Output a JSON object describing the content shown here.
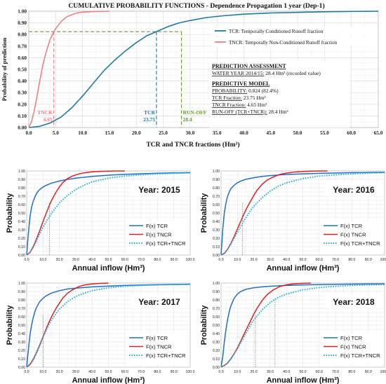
{
  "chart_data": [
    {
      "type": "line",
      "title": "CUMULATIVE PROBABILITY FUNCTIONS - Dependence Propagation 1 year (Dep-1)",
      "xlabel": "TCR and TNCR fractions (Hm³)",
      "ylabel": "Probability of prediction",
      "xlim": [
        0,
        65
      ],
      "ylim": [
        0,
        1
      ],
      "xticks": [
        "0.0",
        "5.0",
        "10.0",
        "15.0",
        "20.0",
        "25.0",
        "30.0",
        "35.0",
        "40.0",
        "45.0",
        "50.0",
        "55.0",
        "60.0",
        "65.0"
      ],
      "yticks": [
        "0.00",
        "0.10",
        "0.20",
        "0.30",
        "0.40",
        "0.50",
        "0.60",
        "0.70",
        "0.80",
        "0.90",
        "1.00"
      ],
      "grid": true,
      "legend_position": "right",
      "series": [
        {
          "name": "TCR: Temporally Conditioned Runoff fraction",
          "color": "#1f7a9e",
          "x": [
            0,
            2,
            4,
            6,
            8,
            10,
            12,
            14,
            16,
            18,
            20,
            22,
            24,
            26,
            28,
            30,
            33,
            36,
            40,
            45,
            50,
            55,
            60,
            65
          ],
          "y": [
            0,
            0.01,
            0.04,
            0.09,
            0.17,
            0.27,
            0.38,
            0.49,
            0.58,
            0.66,
            0.73,
            0.79,
            0.83,
            0.87,
            0.9,
            0.92,
            0.945,
            0.96,
            0.975,
            0.985,
            0.99,
            0.995,
            0.998,
            1.0
          ]
        },
        {
          "name": "TNCR: Temporally Non-Conditioned Runoff fraction",
          "color": "#f08080",
          "x": [
            0,
            0.5,
            1,
            1.5,
            2,
            2.5,
            3,
            3.5,
            4,
            4.65,
            5,
            6,
            7,
            8,
            9,
            10,
            12,
            15
          ],
          "y": [
            0,
            0.05,
            0.14,
            0.26,
            0.39,
            0.51,
            0.61,
            0.69,
            0.76,
            0.824,
            0.85,
            0.91,
            0.95,
            0.97,
            0.985,
            0.992,
            0.997,
            1.0
          ]
        }
      ],
      "annotations": {
        "tncr": {
          "label": "TNCR",
          "value": "4.65",
          "x": 4.65,
          "color": "#f08080"
        },
        "tcr": {
          "label": "TCR",
          "value": "23.75",
          "x": 23.75,
          "color": "#1f7a9e"
        },
        "runoff": {
          "label": "RUN-OFF",
          "value": "28.4",
          "x": 28.4,
          "color": "#6a9a2a"
        },
        "probability": 0.824
      },
      "assessment": {
        "heading": "PREDICTION ASSESSMENT",
        "water_year_label": "WATER YEAR 2014/15:",
        "water_year_value": " 28.4 Hm³ (recorded value)"
      },
      "model": {
        "heading": "PREDICTIVE MODEL",
        "probability_label": "PROBABILITY:",
        "probability_value": " 0.824 (82.4%)",
        "tcr_label": "TCR Fraction:",
        "tcr_value": " 23.75 Hm³",
        "tncr_label": "TNCR Fraction:",
        "tncr_value": " 4.65 Hm³",
        "runoff_label": "RUN-OFF (TCR+TNCR):",
        "runoff_value": " 28.4 Hm³"
      }
    },
    {
      "type": "line",
      "year_label": "Year: 2015",
      "xlabel": "Annual inflow (Hm³)",
      "ylabel": "Probability",
      "xlim": [
        0,
        100
      ],
      "ylim": [
        0,
        1
      ],
      "marker_x": 14,
      "series": [
        {
          "name": "F(x) TCR",
          "color": "#1f6fc4",
          "x": [
            0,
            1,
            2,
            3,
            4,
            5,
            6,
            7,
            8,
            10,
            12,
            15,
            20,
            25,
            30,
            40,
            50,
            60,
            70,
            80,
            90,
            100
          ],
          "y": [
            0,
            0.25,
            0.45,
            0.57,
            0.64,
            0.69,
            0.73,
            0.76,
            0.78,
            0.81,
            0.83,
            0.855,
            0.88,
            0.9,
            0.915,
            0.935,
            0.95,
            0.96,
            0.967,
            0.973,
            0.978,
            0.98
          ]
        },
        {
          "name": "F(x) TNCR",
          "color": "#e02020",
          "x": [
            0,
            2,
            4,
            6,
            8,
            10,
            12,
            14,
            16,
            18,
            20,
            22,
            25,
            28,
            32,
            36,
            40,
            45,
            50,
            55,
            60
          ],
          "y": [
            0,
            0.03,
            0.1,
            0.19,
            0.29,
            0.4,
            0.5,
            0.6,
            0.68,
            0.75,
            0.81,
            0.86,
            0.91,
            0.94,
            0.965,
            0.98,
            0.99,
            0.995,
            0.998,
            1.0,
            1.0
          ]
        },
        {
          "name": "F(x) TCR+TNCR",
          "color": "#20b0e0",
          "x": [
            0,
            2,
            4,
            6,
            8,
            10,
            12,
            14,
            16,
            18,
            20,
            25,
            30,
            35,
            40,
            50,
            60,
            70,
            80,
            90,
            100
          ],
          "y": [
            0,
            0.03,
            0.09,
            0.17,
            0.25,
            0.33,
            0.4,
            0.46,
            0.52,
            0.57,
            0.62,
            0.71,
            0.78,
            0.83,
            0.87,
            0.915,
            0.94,
            0.955,
            0.965,
            0.972,
            0.978
          ]
        }
      ]
    },
    {
      "type": "line",
      "year_label": "Year: 2016",
      "xlabel": "Annual inflow (Hm³)",
      "ylabel": "Probability",
      "xlim": [
        0,
        100
      ],
      "ylim": [
        0,
        1
      ],
      "marker_x": 13,
      "series": [
        {
          "name": "F(x) TCR",
          "color": "#1f6fc4",
          "x": [
            0,
            1,
            2,
            3,
            4,
            5,
            6,
            8,
            10,
            12,
            15,
            20,
            25,
            30,
            40,
            50,
            60,
            70,
            80,
            90,
            100
          ],
          "y": [
            0,
            0.3,
            0.5,
            0.62,
            0.7,
            0.75,
            0.79,
            0.83,
            0.86,
            0.88,
            0.9,
            0.92,
            0.935,
            0.945,
            0.958,
            0.966,
            0.972,
            0.976,
            0.98,
            0.982,
            0.985
          ]
        },
        {
          "name": "F(x) TNCR",
          "color": "#e02020",
          "x": [
            0,
            2,
            4,
            6,
            8,
            10,
            12,
            14,
            16,
            18,
            20,
            22,
            25,
            28,
            32,
            36,
            40,
            45,
            50,
            55,
            60,
            65
          ],
          "y": [
            0,
            0.02,
            0.07,
            0.14,
            0.22,
            0.31,
            0.4,
            0.49,
            0.57,
            0.64,
            0.71,
            0.77,
            0.84,
            0.89,
            0.93,
            0.96,
            0.975,
            0.987,
            0.994,
            0.998,
            1.0,
            1.0
          ]
        },
        {
          "name": "F(x) TCR+TNCR",
          "color": "#20b0e0",
          "x": [
            0,
            2,
            4,
            6,
            8,
            10,
            12,
            14,
            16,
            18,
            20,
            25,
            30,
            35,
            40,
            50,
            60,
            70,
            80,
            90,
            100
          ],
          "y": [
            0,
            0.02,
            0.07,
            0.13,
            0.2,
            0.27,
            0.34,
            0.41,
            0.47,
            0.53,
            0.58,
            0.68,
            0.76,
            0.82,
            0.86,
            0.91,
            0.94,
            0.955,
            0.966,
            0.974,
            0.98
          ]
        }
      ]
    },
    {
      "type": "line",
      "year_label": "Year: 2017",
      "xlabel": "Annual inflow (Hm³)",
      "ylabel": "Probability",
      "xlim": [
        0,
        100
      ],
      "ylim": [
        0,
        1
      ],
      "marker_x": 10,
      "series": [
        {
          "name": "F(x) TCR",
          "color": "#1f6fc4",
          "x": [
            0,
            1,
            2,
            3,
            4,
            5,
            6,
            8,
            10,
            12,
            15,
            20,
            25,
            30,
            40,
            50,
            60,
            70,
            80,
            90,
            100
          ],
          "y": [
            0,
            0.2,
            0.38,
            0.5,
            0.59,
            0.66,
            0.71,
            0.78,
            0.82,
            0.85,
            0.88,
            0.91,
            0.93,
            0.94,
            0.955,
            0.965,
            0.972,
            0.977,
            0.981,
            0.984,
            0.986
          ]
        },
        {
          "name": "F(x) TNCR",
          "color": "#e02020",
          "x": [
            0,
            2,
            4,
            6,
            8,
            10,
            12,
            14,
            16,
            18,
            20,
            22,
            25,
            28,
            32,
            36,
            40,
            45,
            50
          ],
          "y": [
            0,
            0.03,
            0.09,
            0.17,
            0.26,
            0.36,
            0.46,
            0.55,
            0.63,
            0.7,
            0.76,
            0.82,
            0.88,
            0.92,
            0.96,
            0.98,
            0.99,
            0.997,
            1.0
          ]
        },
        {
          "name": "F(x) TCR+TNCR",
          "color": "#20b0e0",
          "x": [
            0,
            2,
            4,
            6,
            8,
            10,
            12,
            14,
            16,
            18,
            20,
            25,
            30,
            35,
            40,
            50,
            60,
            70,
            80,
            90,
            100
          ],
          "y": [
            0,
            0.04,
            0.1,
            0.18,
            0.27,
            0.36,
            0.44,
            0.52,
            0.58,
            0.64,
            0.69,
            0.78,
            0.84,
            0.88,
            0.91,
            0.945,
            0.962,
            0.972,
            0.978,
            0.983,
            0.986
          ]
        }
      ]
    },
    {
      "type": "line",
      "year_label": "Year: 2018",
      "xlabel": "Annual inflow (Hm³)",
      "ylabel": "Probability",
      "xlim": [
        0,
        100
      ],
      "ylim": [
        0,
        1
      ],
      "marker_x": 21,
      "marker2_x": 33,
      "series": [
        {
          "name": "F(x) TCR",
          "color": "#1f6fc4",
          "x": [
            0,
            1,
            2,
            3,
            4,
            5,
            6,
            8,
            10,
            12,
            15,
            20,
            25,
            30,
            40,
            50,
            60,
            70,
            80,
            90,
            100
          ],
          "y": [
            0,
            0.12,
            0.3,
            0.45,
            0.57,
            0.66,
            0.73,
            0.82,
            0.87,
            0.9,
            0.925,
            0.945,
            0.955,
            0.963,
            0.972,
            0.978,
            0.982,
            0.985,
            0.988,
            0.99,
            0.992
          ]
        },
        {
          "name": "F(x) TNCR",
          "color": "#e02020",
          "x": [
            0,
            2,
            4,
            6,
            8,
            10,
            12,
            14,
            16,
            18,
            20,
            22,
            25,
            28,
            32,
            36,
            40,
            45,
            50,
            55
          ],
          "y": [
            0,
            0.02,
            0.05,
            0.1,
            0.16,
            0.23,
            0.31,
            0.39,
            0.47,
            0.55,
            0.63,
            0.7,
            0.79,
            0.86,
            0.92,
            0.96,
            0.98,
            0.993,
            0.998,
            1.0
          ]
        },
        {
          "name": "F(x) TCR+TNCR",
          "color": "#20b0e0",
          "x": [
            0,
            2,
            4,
            6,
            8,
            10,
            12,
            14,
            16,
            18,
            20,
            25,
            30,
            35,
            40,
            50,
            60,
            70,
            80,
            90,
            100
          ],
          "y": [
            0,
            0.02,
            0.05,
            0.1,
            0.16,
            0.22,
            0.29,
            0.36,
            0.43,
            0.5,
            0.56,
            0.68,
            0.77,
            0.83,
            0.87,
            0.92,
            0.948,
            0.962,
            0.972,
            0.978,
            0.982
          ]
        }
      ]
    }
  ]
}
